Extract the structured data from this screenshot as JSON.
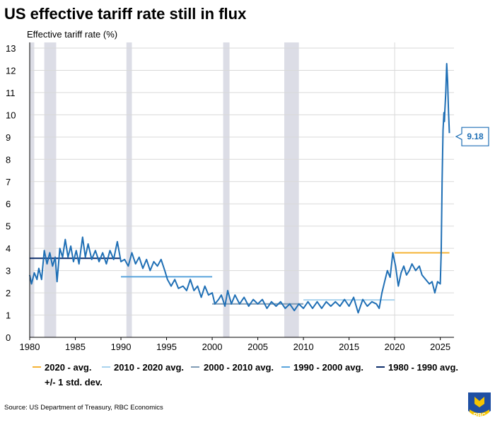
{
  "chart_data": {
    "type": "line",
    "title": "US effective tariff rate still in flux",
    "ylabel": "Effective tariff rate (%)",
    "xlim": [
      1980,
      2026.5
    ],
    "ylim": [
      0,
      13
    ],
    "x_ticks": [
      1980,
      1985,
      1990,
      1995,
      2000,
      2005,
      2010,
      2015,
      2020,
      2025
    ],
    "y_ticks": [
      0,
      1,
      2,
      3,
      4,
      5,
      6,
      7,
      8,
      9,
      10,
      11,
      12,
      13
    ],
    "grid": "vertical at 2020 only, horizontal on",
    "legend_position": "bottom",
    "recession_bands": [
      [
        1980.0,
        1980.5
      ],
      [
        1981.6,
        1982.9
      ],
      [
        1990.6,
        1991.2
      ],
      [
        2001.2,
        2001.9
      ],
      [
        2007.9,
        2009.5
      ]
    ],
    "series": [
      {
        "color": "#1f6fb5",
        "points": [
          [
            1980.0,
            2.8
          ],
          [
            1980.2,
            2.4
          ],
          [
            1980.5,
            2.9
          ],
          [
            1980.8,
            2.6
          ],
          [
            1981.0,
            3.1
          ],
          [
            1981.3,
            2.6
          ],
          [
            1981.6,
            3.9
          ],
          [
            1981.9,
            3.3
          ],
          [
            1982.2,
            3.8
          ],
          [
            1982.5,
            3.2
          ],
          [
            1982.8,
            3.6
          ],
          [
            1983.0,
            2.5
          ],
          [
            1983.3,
            4.0
          ],
          [
            1983.6,
            3.6
          ],
          [
            1983.9,
            4.4
          ],
          [
            1984.2,
            3.6
          ],
          [
            1984.5,
            4.1
          ],
          [
            1984.8,
            3.4
          ],
          [
            1985.1,
            3.9
          ],
          [
            1985.4,
            3.3
          ],
          [
            1985.8,
            4.5
          ],
          [
            1986.1,
            3.6
          ],
          [
            1986.4,
            4.2
          ],
          [
            1986.8,
            3.5
          ],
          [
            1987.2,
            3.9
          ],
          [
            1987.6,
            3.4
          ],
          [
            1988.0,
            3.8
          ],
          [
            1988.4,
            3.3
          ],
          [
            1988.8,
            3.9
          ],
          [
            1989.2,
            3.5
          ],
          [
            1989.6,
            4.3
          ],
          [
            1990.0,
            3.4
          ],
          [
            1990.4,
            3.5
          ],
          [
            1990.8,
            3.2
          ],
          [
            1991.2,
            3.8
          ],
          [
            1991.6,
            3.3
          ],
          [
            1992.0,
            3.6
          ],
          [
            1992.4,
            3.1
          ],
          [
            1992.8,
            3.5
          ],
          [
            1993.2,
            3.0
          ],
          [
            1993.6,
            3.4
          ],
          [
            1994.0,
            3.2
          ],
          [
            1994.4,
            3.5
          ],
          [
            1994.8,
            3.0
          ],
          [
            1995.1,
            2.6
          ],
          [
            1995.5,
            2.3
          ],
          [
            1995.9,
            2.6
          ],
          [
            1996.3,
            2.2
          ],
          [
            1996.8,
            2.3
          ],
          [
            1997.2,
            2.1
          ],
          [
            1997.6,
            2.6
          ],
          [
            1998.0,
            2.1
          ],
          [
            1998.4,
            2.3
          ],
          [
            1998.8,
            1.8
          ],
          [
            1999.2,
            2.3
          ],
          [
            1999.6,
            1.9
          ],
          [
            2000.0,
            2.0
          ],
          [
            2000.3,
            1.5
          ],
          [
            2000.7,
            1.7
          ],
          [
            2001.0,
            1.9
          ],
          [
            2001.4,
            1.4
          ],
          [
            2001.7,
            2.1
          ],
          [
            2002.1,
            1.5
          ],
          [
            2002.5,
            1.9
          ],
          [
            2003.0,
            1.5
          ],
          [
            2003.5,
            1.8
          ],
          [
            2004.0,
            1.4
          ],
          [
            2004.5,
            1.7
          ],
          [
            2005.0,
            1.5
          ],
          [
            2005.5,
            1.7
          ],
          [
            2006.0,
            1.3
          ],
          [
            2006.5,
            1.6
          ],
          [
            2007.0,
            1.4
          ],
          [
            2007.5,
            1.6
          ],
          [
            2008.0,
            1.3
          ],
          [
            2008.5,
            1.5
          ],
          [
            2009.0,
            1.2
          ],
          [
            2009.5,
            1.5
          ],
          [
            2010.0,
            1.3
          ],
          [
            2010.5,
            1.6
          ],
          [
            2011.0,
            1.3
          ],
          [
            2011.5,
            1.6
          ],
          [
            2012.0,
            1.3
          ],
          [
            2012.5,
            1.6
          ],
          [
            2013.0,
            1.4
          ],
          [
            2013.5,
            1.6
          ],
          [
            2014.0,
            1.4
          ],
          [
            2014.5,
            1.7
          ],
          [
            2015.0,
            1.4
          ],
          [
            2015.5,
            1.8
          ],
          [
            2016.0,
            1.1
          ],
          [
            2016.5,
            1.7
          ],
          [
            2017.0,
            1.4
          ],
          [
            2017.5,
            1.6
          ],
          [
            2018.0,
            1.5
          ],
          [
            2018.3,
            1.3
          ],
          [
            2018.6,
            2.0
          ],
          [
            2018.9,
            2.5
          ],
          [
            2019.2,
            3.0
          ],
          [
            2019.5,
            2.7
          ],
          [
            2019.8,
            3.8
          ],
          [
            2020.1,
            3.2
          ],
          [
            2020.4,
            2.3
          ],
          [
            2020.7,
            2.9
          ],
          [
            2021.0,
            3.2
          ],
          [
            2021.3,
            2.8
          ],
          [
            2021.6,
            3.0
          ],
          [
            2021.9,
            3.3
          ],
          [
            2022.3,
            3.0
          ],
          [
            2022.7,
            3.2
          ],
          [
            2023.0,
            2.8
          ],
          [
            2023.4,
            2.6
          ],
          [
            2023.8,
            2.4
          ],
          [
            2024.1,
            2.5
          ],
          [
            2024.4,
            2.0
          ],
          [
            2024.7,
            2.5
          ],
          [
            2025.0,
            2.4
          ],
          [
            2025.1,
            3.8
          ],
          [
            2025.2,
            7.0
          ],
          [
            2025.3,
            9.3
          ],
          [
            2025.4,
            10.1
          ],
          [
            2025.45,
            9.7
          ],
          [
            2025.5,
            10.2
          ],
          [
            2025.6,
            11.0
          ],
          [
            2025.7,
            12.3
          ],
          [
            2025.8,
            11.5
          ],
          [
            2025.9,
            10.1
          ],
          [
            2026.0,
            9.18
          ]
        ]
      }
    ],
    "averages": [
      {
        "name": "2020 - avg.",
        "color": "#f5b335",
        "x": [
          2020.0,
          2026.0
        ],
        "y": 3.8
      },
      {
        "name": "2010 - 2020 avg.",
        "color": "#a9d3ee",
        "x": [
          2010.0,
          2020.0
        ],
        "y": 1.68
      },
      {
        "name": "2000 - 2010 avg.",
        "color": "#7f9cb5",
        "x": [
          2000.0,
          2010.0
        ],
        "y": 1.5
      },
      {
        "name": "1990 - 2000 avg.",
        "color": "#5aa4dc",
        "x": [
          1990.0,
          2000.0
        ],
        "y": 2.72
      },
      {
        "name": "1980 - 1990 avg.",
        "color": "#0d2d6b",
        "x": [
          1980.0,
          1990.0
        ],
        "y": 3.55
      }
    ],
    "legend_extra": "+/- 1 std. dev.",
    "callout": {
      "label": "9.18",
      "value": 9.18,
      "x": 2026.0
    }
  },
  "source": "Source: US Department of Treasury, RBC Economics",
  "logo_text": "RBC",
  "colors": {
    "line": "#1f6fb5",
    "recession": "#dcdde6",
    "grid": "#d9d9d9",
    "axis": "#000000"
  }
}
